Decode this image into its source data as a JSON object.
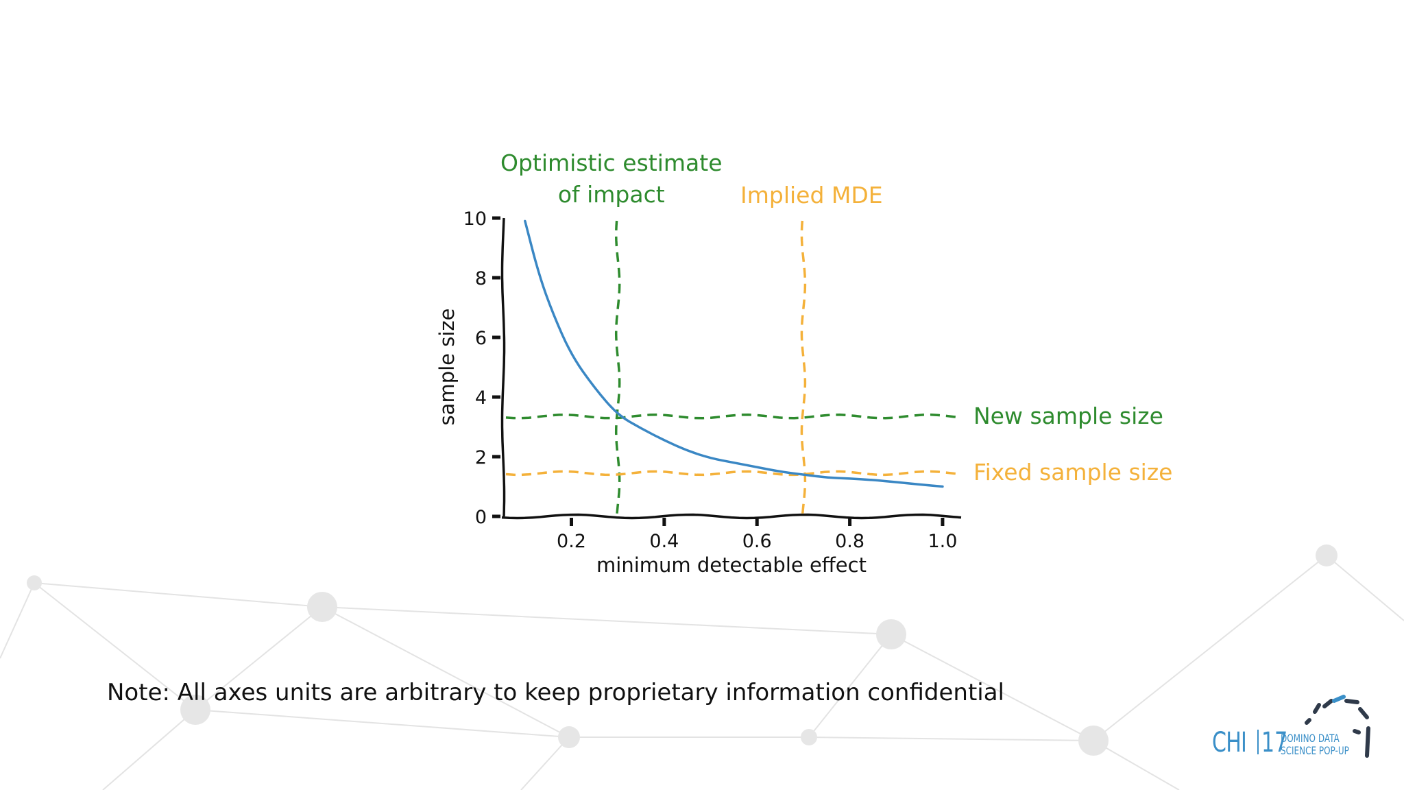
{
  "note": "Note: All axes units are arbitrary to keep proprietary information confidential",
  "logo": {
    "chi": "CHI",
    "year": "17",
    "line1": "DOMINO DATA",
    "line2": "SCIENCE POP-UP"
  },
  "colors": {
    "curve": "#3a87c4",
    "green": "#2e8b2e",
    "orange": "#f4b13a",
    "logo": "#3a8fc8"
  },
  "chart_data": {
    "type": "line",
    "xlabel": "minimum detectable effect",
    "ylabel": "sample size",
    "xlim": [
      0.05,
      1.04
    ],
    "ylim": [
      0,
      10
    ],
    "xticks": [
      "0.2",
      "0.4",
      "0.6",
      "0.8",
      "1.0"
    ],
    "yticks": [
      "0",
      "2",
      "4",
      "6",
      "8",
      "10"
    ],
    "grid": false,
    "series": [
      {
        "x": [
          0.1,
          0.13,
          0.16,
          0.2,
          0.25,
          0.3,
          0.35,
          0.4,
          0.45,
          0.5,
          0.55,
          0.6,
          0.65,
          0.7,
          0.75,
          0.8,
          0.85,
          0.9,
          0.95,
          1.0
        ],
        "y": [
          9.9,
          8.1,
          6.8,
          5.4,
          4.3,
          3.4,
          2.95,
          2.55,
          2.2,
          1.95,
          1.8,
          1.65,
          1.5,
          1.4,
          1.3,
          1.27,
          1.22,
          1.15,
          1.07,
          1.0
        ]
      }
    ],
    "reference_lines": [
      {
        "orientation": "vertical",
        "x": 0.3,
        "color": "green",
        "label": "Optimistic estimate\nof impact"
      },
      {
        "orientation": "vertical",
        "x": 0.7,
        "color": "orange",
        "label": "Implied MDE"
      },
      {
        "orientation": "horizontal",
        "y": 3.35,
        "color": "green",
        "label": "New sample size"
      },
      {
        "orientation": "horizontal",
        "y": 1.45,
        "color": "orange",
        "label": "Fixed sample size"
      }
    ]
  }
}
